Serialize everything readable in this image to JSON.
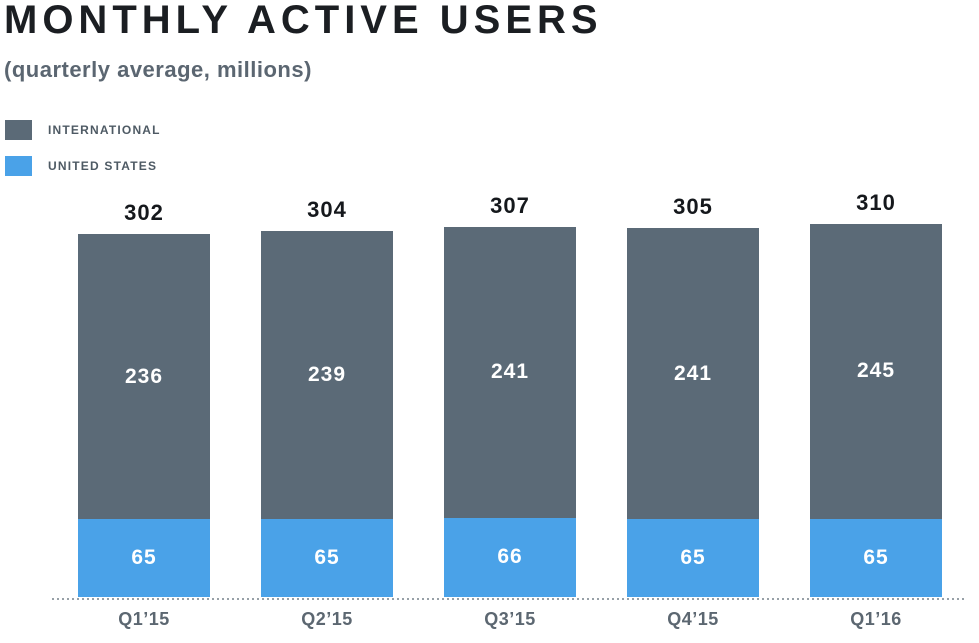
{
  "chart_data": {
    "type": "bar",
    "stacked": true,
    "title": "MONTHLY ACTIVE USERS",
    "subtitle": "(quarterly average, millions)",
    "categories": [
      "Q1’15",
      "Q2’15",
      "Q3’15",
      "Q4’15",
      "Q1’16"
    ],
    "series": [
      {
        "name": "INTERNATIONAL",
        "color": "#5b6a77",
        "values": [
          236,
          239,
          241,
          241,
          245
        ]
      },
      {
        "name": "UNITED STATES",
        "color": "#4aa2e8",
        "values": [
          65,
          65,
          66,
          65,
          65
        ]
      }
    ],
    "totals": [
      302,
      304,
      307,
      305,
      310
    ],
    "xlabel": "",
    "ylabel": "",
    "ylim": [
      0,
      330
    ],
    "grid": false,
    "legend_position": "top-left",
    "value_labels": "inside-segments-white",
    "total_labels": "above-bars",
    "baseline_style": "dotted"
  },
  "colors": {
    "title": "#1b1e22",
    "subtitle": "#5b6671",
    "legend_text": "#4e5a64",
    "international": "#5b6a77",
    "united_states": "#4aa2e8",
    "total_label": "#15181c",
    "axis_label": "#5c6771",
    "baseline_dots": "#97a0a7",
    "value_text": "#ffffff",
    "background": "#ffffff"
  }
}
